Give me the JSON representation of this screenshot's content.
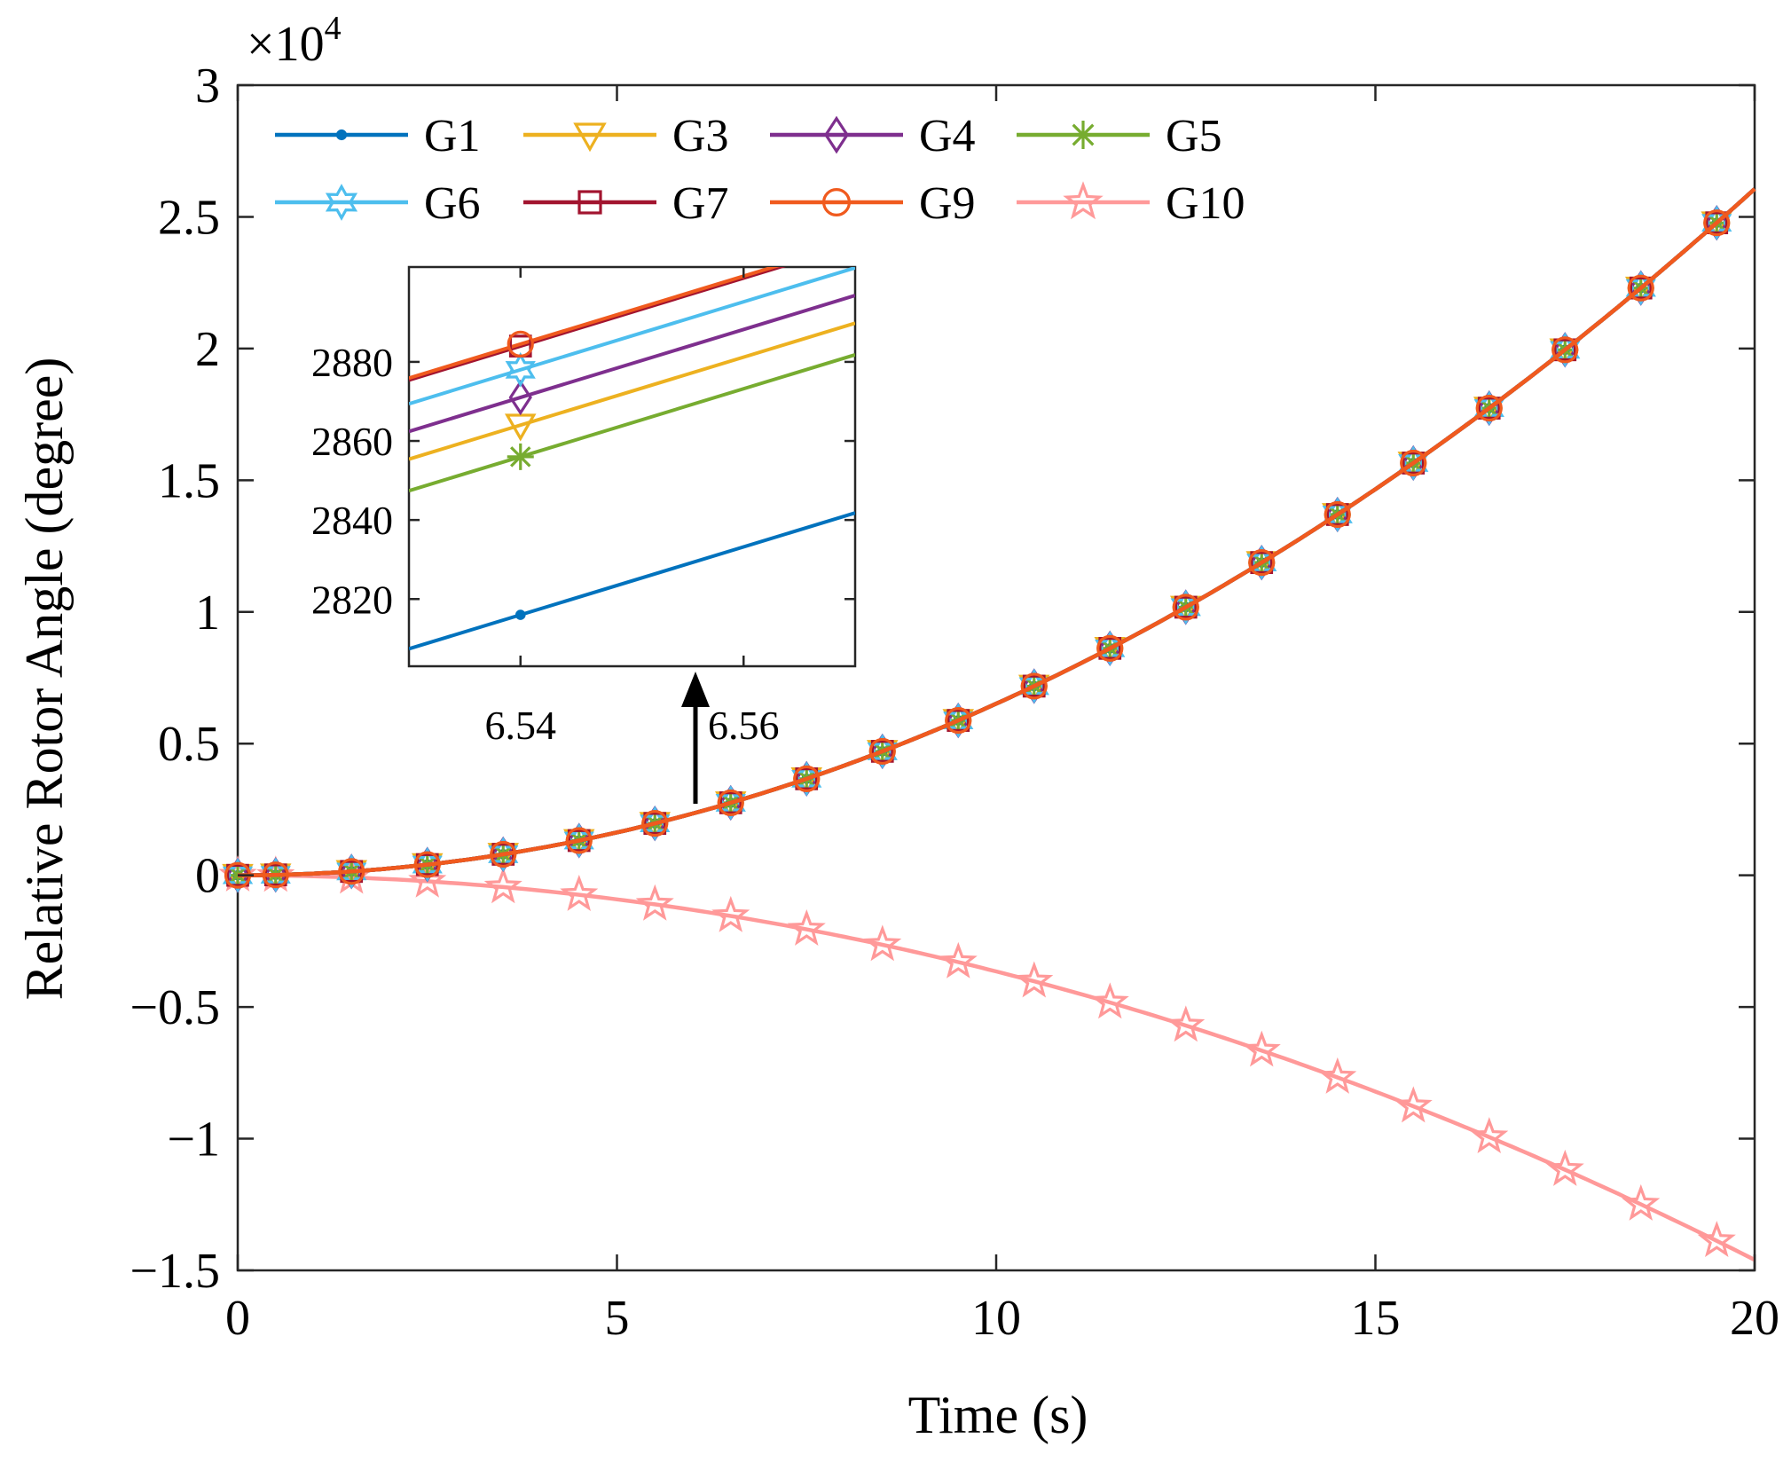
{
  "chart_data": {
    "type": "line",
    "xlabel": "Time (s)",
    "ylabel": "Relative Rotor Angle (degree)",
    "y_multiplier_label": "×10",
    "y_multiplier_exp": "4",
    "xlim": [
      0,
      20
    ],
    "ylim": [
      -15000,
      30000
    ],
    "xticks": [
      0,
      5,
      10,
      15,
      20
    ],
    "xtick_labels": [
      "0",
      "5",
      "10",
      "15",
      "20"
    ],
    "yticks": [
      -15000,
      -10000,
      -5000,
      0,
      5000,
      10000,
      15000,
      20000,
      25000,
      30000
    ],
    "ytick_labels": [
      "−1.5",
      "−1",
      "−0.5",
      "0",
      "0.5",
      "1",
      "1.5",
      "2",
      "2.5",
      "3"
    ],
    "grid": false,
    "legend_position": "top-left",
    "series": [
      {
        "name": "G1",
        "color": "#0072BD",
        "marker": "dot",
        "model": "quadratic",
        "coef": 65.15,
        "offset": 0
      },
      {
        "name": "G3",
        "color": "#EDB120",
        "marker": "triangle",
        "model": "quadratic",
        "coef": 65.15,
        "offset": 0
      },
      {
        "name": "G4",
        "color": "#7E2F8E",
        "marker": "diamond",
        "model": "quadratic",
        "coef": 65.15,
        "offset": 0
      },
      {
        "name": "G5",
        "color": "#77AC30",
        "marker": "asterisk",
        "model": "quadratic",
        "coef": 65.15,
        "offset": 0
      },
      {
        "name": "G6",
        "color": "#4DBEEE",
        "marker": "hexagram",
        "model": "quadratic",
        "coef": 65.15,
        "offset": 0
      },
      {
        "name": "G7",
        "color": "#A2142F",
        "marker": "square",
        "model": "quadratic",
        "coef": 65.15,
        "offset": 0
      },
      {
        "name": "G9",
        "color": "#F05A1E",
        "marker": "circle",
        "model": "quadratic",
        "coef": 65.15,
        "offset": 0
      },
      {
        "name": "G10",
        "color": "#FF9999",
        "marker": "pentagram",
        "model": "quadratic",
        "coef": -36.5,
        "offset": 0
      }
    ],
    "marker_times": [
      0,
      0.5,
      1.5,
      2.5,
      3.5,
      4.5,
      5.5,
      6.5,
      7.5,
      8.5,
      9.5,
      10.5,
      11.5,
      12.5,
      13.5,
      14.5,
      15.5,
      16.5,
      17.5,
      18.5,
      19.5
    ],
    "inset": {
      "xlim": [
        6.53,
        6.57
      ],
      "ylim": [
        2803,
        2904
      ],
      "xticks": [
        6.54,
        6.56
      ],
      "xtick_labels": [
        "6.54",
        "6.56"
      ],
      "yticks": [
        2820,
        2840,
        2860,
        2880
      ],
      "ytick_labels": [
        "2820",
        "2840",
        "2860",
        "2880"
      ],
      "slope": 860,
      "marker_x": 6.54,
      "series_values_at_marker": [
        {
          "name": "G1",
          "y": 2816
        },
        {
          "name": "G3",
          "y": 2864
        },
        {
          "name": "G4",
          "y": 2871
        },
        {
          "name": "G5",
          "y": 2856
        },
        {
          "name": "G6",
          "y": 2878
        },
        {
          "name": "G7",
          "y": 2884
        },
        {
          "name": "G9",
          "y": 2884.5
        }
      ]
    }
  }
}
